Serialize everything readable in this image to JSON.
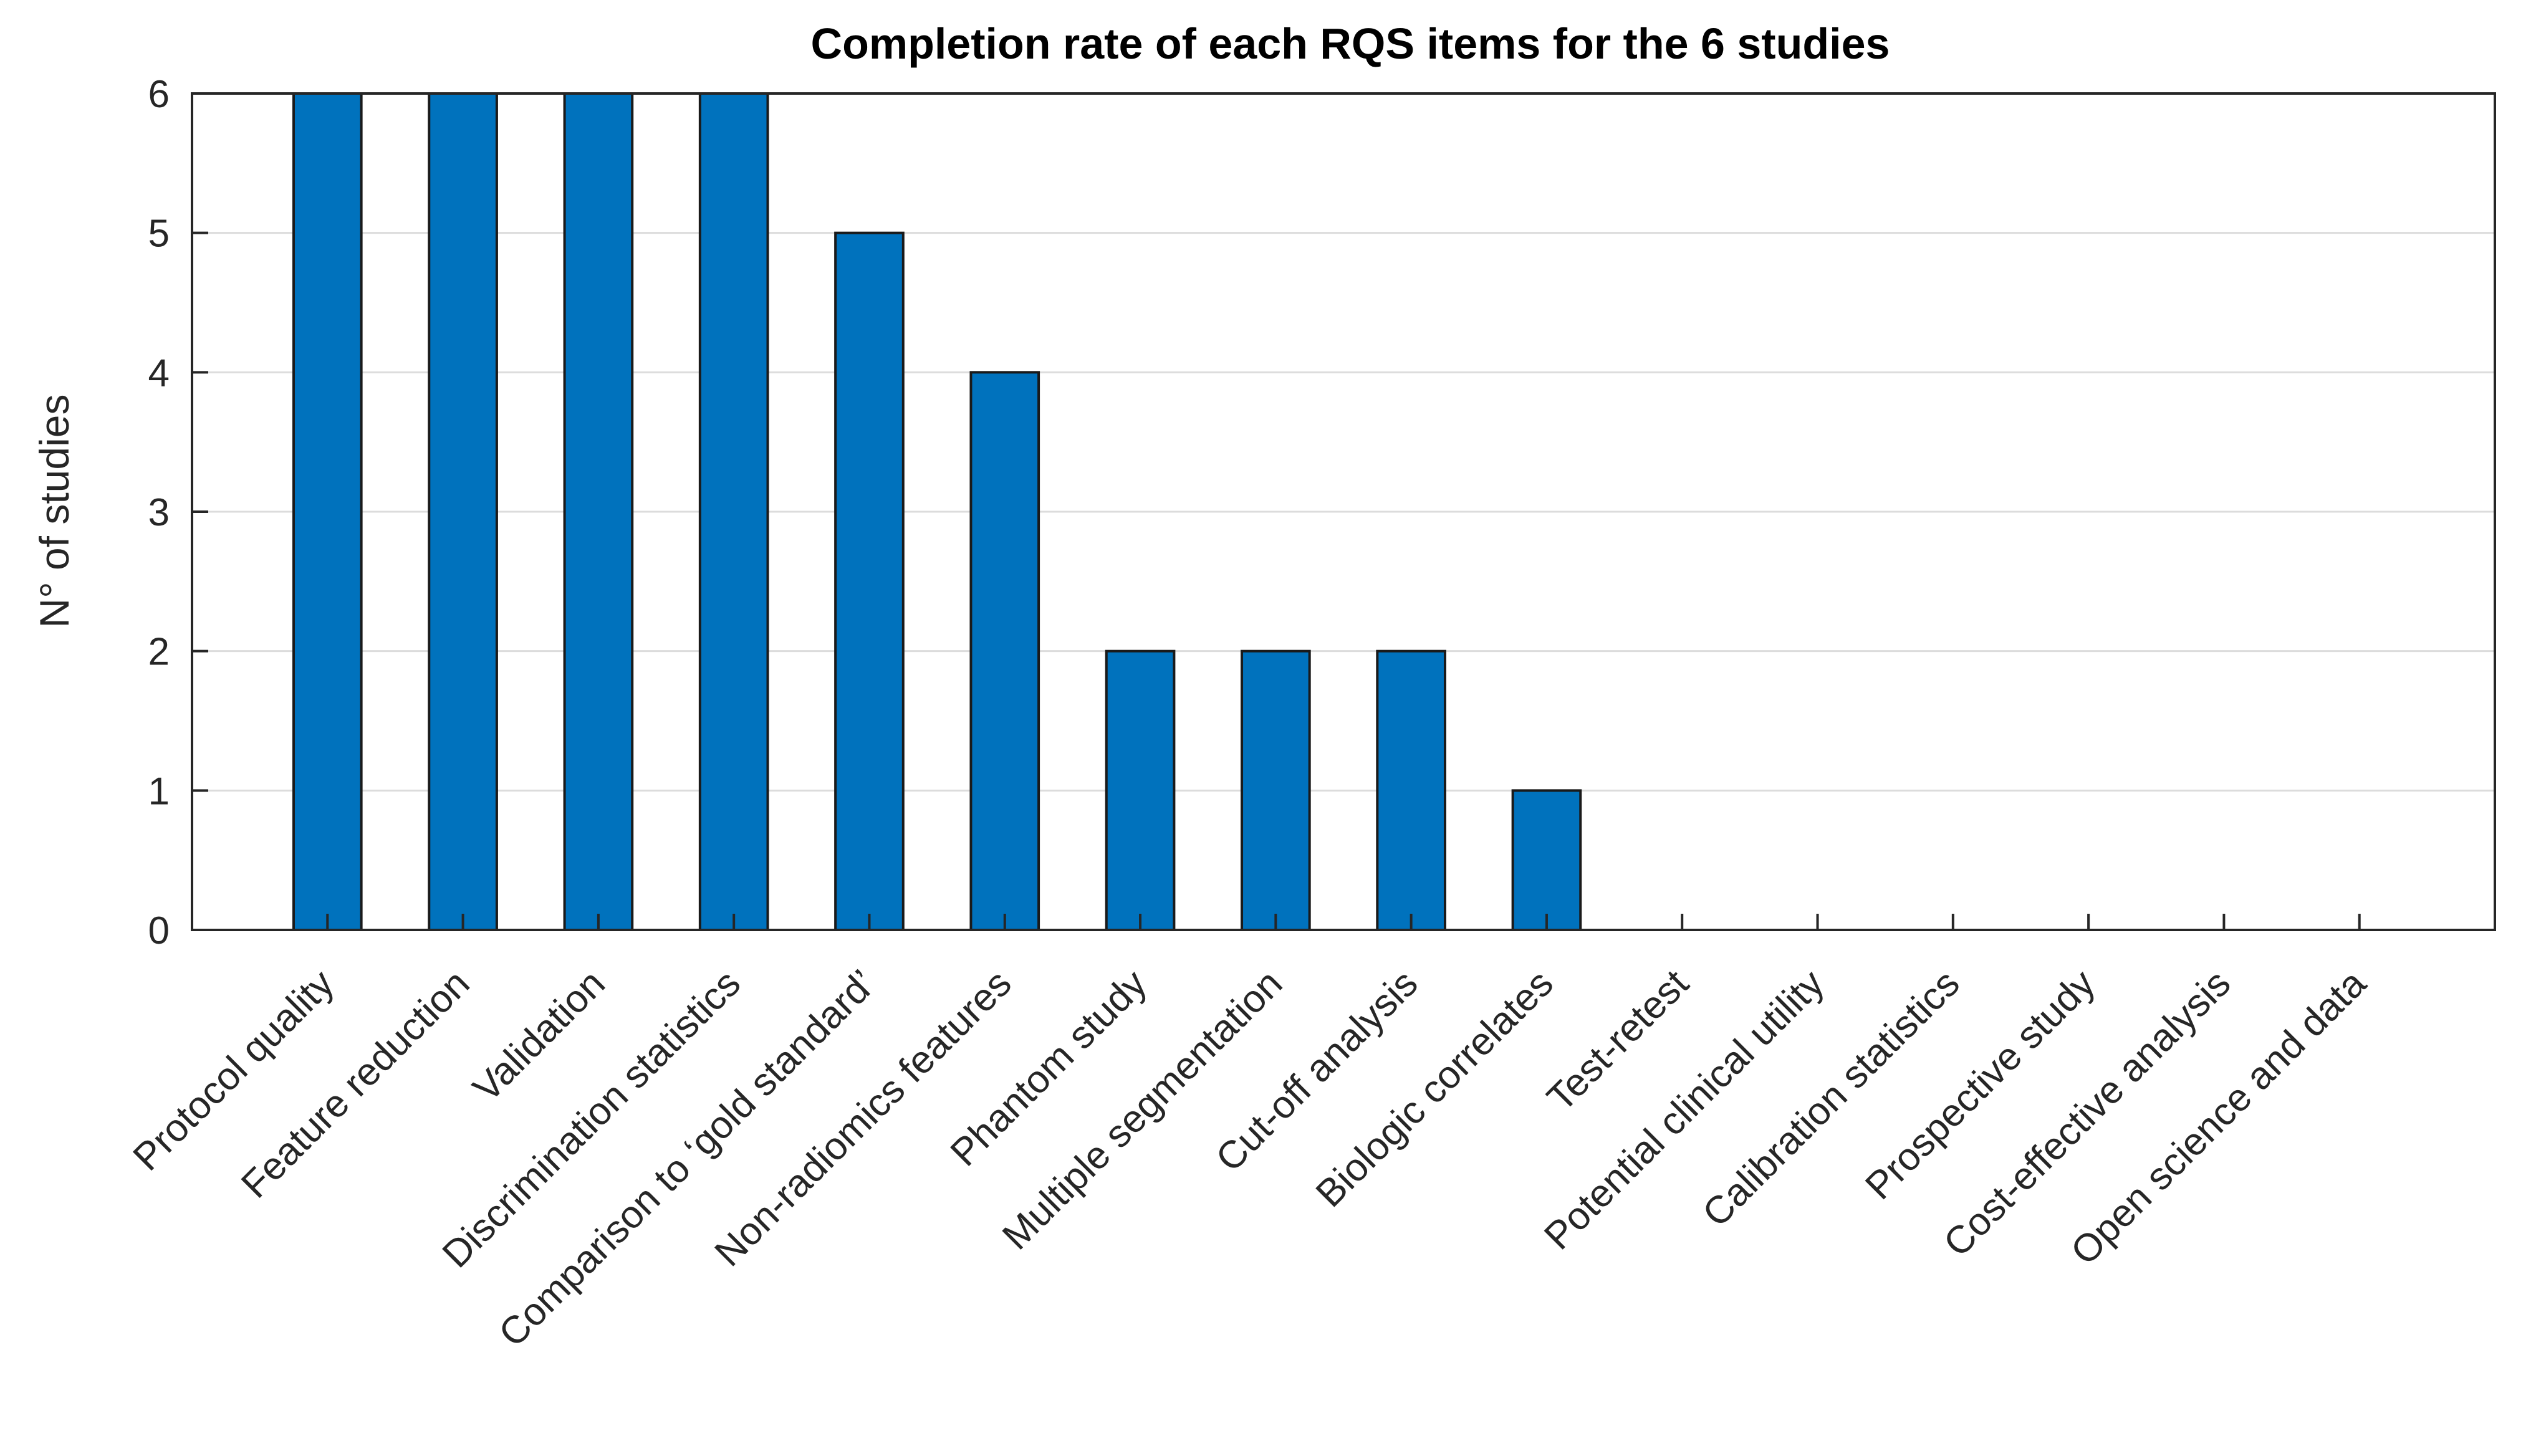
{
  "chart_data": {
    "type": "bar",
    "title": "Completion rate of each RQS items for the 6 studies",
    "xlabel": "",
    "ylabel": "N° of studies",
    "ylim": [
      0,
      6
    ],
    "yticks": [
      0,
      1,
      2,
      3,
      4,
      5,
      6
    ],
    "grid": "horizontal",
    "categories": [
      "Protocol quality",
      "Feature reduction",
      "Validation",
      "Discrimination statistics",
      "Comparison to ‘gold standard’",
      "Non-radiomics features",
      "Phantom study",
      "Multiple segmentation",
      "Cut-off analysis",
      "Biologic correlates",
      "Test-retest",
      "Potential clinical utility",
      "Calibration statistics",
      "Prospective study",
      "Cost-effective analysis",
      "Open science and data"
    ],
    "values": [
      6,
      6,
      6,
      6,
      5,
      4,
      2,
      2,
      2,
      1,
      0,
      0,
      0,
      0,
      0,
      0
    ],
    "colors": {
      "bar": "#0072BD",
      "bar_edge": "#1a1a1a",
      "axis": "#262626",
      "grid": "#dcdcdc"
    }
  }
}
